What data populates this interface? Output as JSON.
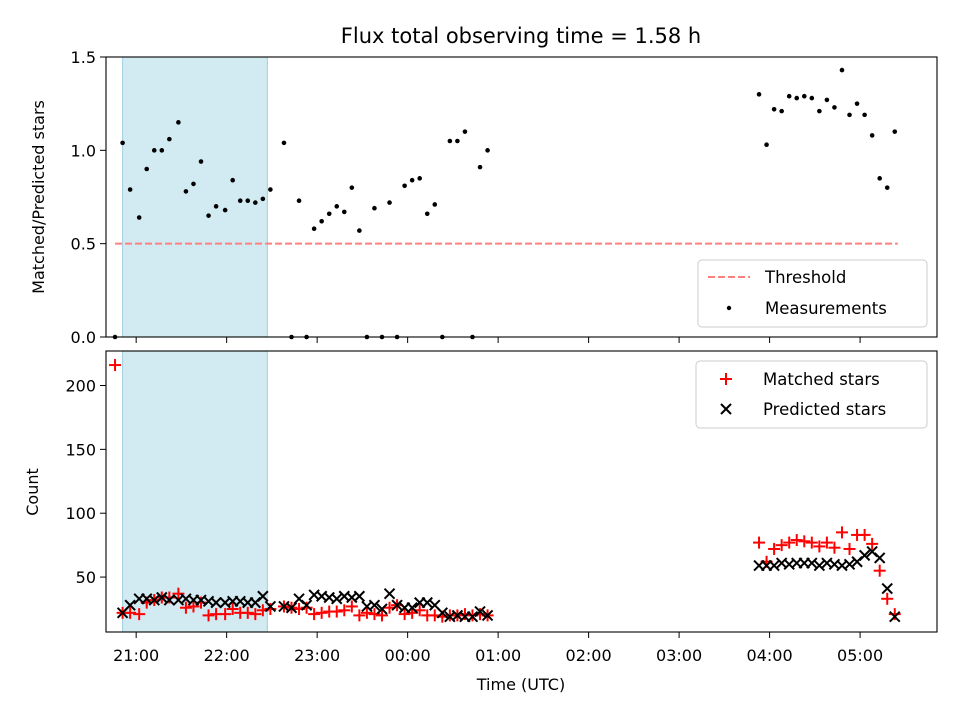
{
  "chart_data": [
    {
      "type": "scatter",
      "title": "Flux total observing time = 1.58 h",
      "ylabel": "Matched/Predicted stars",
      "ylim": [
        0,
        1.5
      ],
      "yticks": [
        "0.0",
        "0.5",
        "1.0",
        "1.5"
      ],
      "xlim": [
        "20:40",
        "05:51"
      ],
      "grid": false,
      "legend_position": "bottom-right",
      "highlight_span": {
        "start": "20:51",
        "end": "22:27",
        "color": "#add8e6"
      },
      "threshold": {
        "name": "Threshold",
        "value": 0.5,
        "x_start": "20:46",
        "x_end": "05:25",
        "color": "#ff7f7f"
      },
      "series": [
        {
          "name": "Measurements",
          "color": "#000000",
          "points": [
            [
              "20:46",
              0.0
            ],
            [
              "20:51",
              1.04
            ],
            [
              "20:56",
              0.79
            ],
            [
              "21:02",
              0.64
            ],
            [
              "21:07",
              0.9
            ],
            [
              "21:12",
              1.0
            ],
            [
              "21:17",
              1.0
            ],
            [
              "21:22",
              1.06
            ],
            [
              "21:28",
              1.15
            ],
            [
              "21:33",
              0.78
            ],
            [
              "21:38",
              0.82
            ],
            [
              "21:43",
              0.94
            ],
            [
              "21:48",
              0.65
            ],
            [
              "21:53",
              0.7
            ],
            [
              "21:59",
              0.68
            ],
            [
              "22:04",
              0.84
            ],
            [
              "22:09",
              0.73
            ],
            [
              "22:14",
              0.73
            ],
            [
              "22:19",
              0.72
            ],
            [
              "22:24",
              0.74
            ],
            [
              "22:29",
              0.79
            ],
            [
              "22:38",
              1.04
            ],
            [
              "22:43",
              0.0
            ],
            [
              "22:48",
              0.73
            ],
            [
              "22:53",
              0.0
            ],
            [
              "22:58",
              0.58
            ],
            [
              "23:03",
              0.62
            ],
            [
              "23:08",
              0.66
            ],
            [
              "23:13",
              0.7
            ],
            [
              "23:18",
              0.67
            ],
            [
              "23:23",
              0.8
            ],
            [
              "23:28",
              0.57
            ],
            [
              "23:33",
              0.0
            ],
            [
              "23:38",
              0.69
            ],
            [
              "23:43",
              0.0
            ],
            [
              "23:48",
              0.72
            ],
            [
              "23:53",
              0.0
            ],
            [
              "23:58",
              0.81
            ],
            [
              "00:03",
              0.84
            ],
            [
              "00:08",
              0.85
            ],
            [
              "00:13",
              0.66
            ],
            [
              "00:18",
              0.71
            ],
            [
              "00:23",
              0.0
            ],
            [
              "00:28",
              1.05
            ],
            [
              "00:33",
              1.05
            ],
            [
              "00:38",
              1.1
            ],
            [
              "00:43",
              0.0
            ],
            [
              "00:48",
              0.91
            ],
            [
              "00:53",
              1.0
            ],
            [
              "03:53",
              1.3
            ],
            [
              "03:58",
              1.03
            ],
            [
              "04:03",
              1.22
            ],
            [
              "04:08",
              1.21
            ],
            [
              "04:13",
              1.29
            ],
            [
              "04:18",
              1.28
            ],
            [
              "04:23",
              1.29
            ],
            [
              "04:28",
              1.28
            ],
            [
              "04:33",
              1.21
            ],
            [
              "04:38",
              1.27
            ],
            [
              "04:43",
              1.23
            ],
            [
              "04:48",
              1.43
            ],
            [
              "04:53",
              1.19
            ],
            [
              "04:58",
              1.25
            ],
            [
              "05:03",
              1.19
            ],
            [
              "05:08",
              1.08
            ],
            [
              "05:13",
              0.85
            ],
            [
              "05:18",
              0.8
            ],
            [
              "05:23",
              1.1
            ]
          ]
        }
      ]
    },
    {
      "type": "scatter",
      "ylabel": "Count",
      "xlabel": "Time (UTC)",
      "ylim": [
        7,
        227
      ],
      "yticks": [
        "50",
        "100",
        "150",
        "200"
      ],
      "xlim": [
        "20:40",
        "05:51"
      ],
      "xticks": [
        "21:00",
        "22:00",
        "23:00",
        "00:00",
        "01:00",
        "02:00",
        "03:00",
        "04:00",
        "05:00"
      ],
      "grid": false,
      "legend_position": "top-right",
      "highlight_span": {
        "start": "20:51",
        "end": "22:27",
        "color": "#add8e6"
      },
      "series": [
        {
          "name": "Matched stars",
          "marker": "plus",
          "color": "#ff0000",
          "points": [
            [
              "20:46",
              216
            ],
            [
              "20:51",
              22
            ],
            [
              "20:56",
              22
            ],
            [
              "21:02",
              21
            ],
            [
              "21:07",
              30
            ],
            [
              "21:12",
              32
            ],
            [
              "21:17",
              34
            ],
            [
              "21:22",
              34
            ],
            [
              "21:28",
              37
            ],
            [
              "21:33",
              26
            ],
            [
              "21:38",
              27
            ],
            [
              "21:43",
              30
            ],
            [
              "21:48",
              20
            ],
            [
              "21:53",
              21
            ],
            [
              "21:59",
              21
            ],
            [
              "22:04",
              25
            ],
            [
              "22:09",
              22
            ],
            [
              "22:14",
              22
            ],
            [
              "22:19",
              21
            ],
            [
              "22:24",
              24
            ],
            [
              "22:29",
              25
            ],
            [
              "22:38",
              27
            ],
            [
              "22:43",
              26
            ],
            [
              "22:48",
              25
            ],
            [
              "22:53",
              26
            ],
            [
              "22:58",
              21
            ],
            [
              "23:03",
              22
            ],
            [
              "23:08",
              23
            ],
            [
              "23:13",
              23
            ],
            [
              "23:18",
              24
            ],
            [
              "23:23",
              27
            ],
            [
              "23:28",
              20
            ],
            [
              "23:33",
              22
            ],
            [
              "23:38",
              21
            ],
            [
              "23:43",
              20
            ],
            [
              "23:48",
              26
            ],
            [
              "23:53",
              28
            ],
            [
              "23:58",
              21
            ],
            [
              "00:03",
              22
            ],
            [
              "00:08",
              24
            ],
            [
              "00:13",
              20
            ],
            [
              "00:18",
              20
            ],
            [
              "00:23",
              19
            ],
            [
              "00:28",
              20
            ],
            [
              "00:33",
              20
            ],
            [
              "00:38",
              21
            ],
            [
              "00:43",
              20
            ],
            [
              "00:48",
              21
            ],
            [
              "00:53",
              20
            ],
            [
              "03:53",
              77
            ],
            [
              "03:58",
              62
            ],
            [
              "04:03",
              72
            ],
            [
              "04:08",
              75
            ],
            [
              "04:13",
              77
            ],
            [
              "04:18",
              79
            ],
            [
              "04:23",
              78
            ],
            [
              "04:28",
              77
            ],
            [
              "04:33",
              74
            ],
            [
              "04:38",
              77
            ],
            [
              "04:43",
              73
            ],
            [
              "04:48",
              85
            ],
            [
              "04:53",
              72
            ],
            [
              "04:58",
              83
            ],
            [
              "05:03",
              83
            ],
            [
              "05:08",
              76
            ],
            [
              "05:13",
              55
            ],
            [
              "05:18",
              33
            ],
            [
              "05:23",
              21
            ]
          ]
        },
        {
          "name": "Predicted stars",
          "marker": "x",
          "color": "#000000",
          "points": [
            [
              "20:51",
              22
            ],
            [
              "20:56",
              28
            ],
            [
              "21:02",
              33
            ],
            [
              "21:07",
              33
            ],
            [
              "21:12",
              32
            ],
            [
              "21:17",
              34
            ],
            [
              "21:22",
              32
            ],
            [
              "21:28",
              32
            ],
            [
              "21:33",
              33
            ],
            [
              "21:38",
              32
            ],
            [
              "21:43",
              32
            ],
            [
              "21:48",
              31
            ],
            [
              "21:53",
              30
            ],
            [
              "21:59",
              30
            ],
            [
              "22:04",
              31
            ],
            [
              "22:09",
              31
            ],
            [
              "22:14",
              30
            ],
            [
              "22:19",
              30
            ],
            [
              "22:24",
              35
            ],
            [
              "22:29",
              27
            ],
            [
              "22:38",
              27
            ],
            [
              "22:43",
              26
            ],
            [
              "22:48",
              33
            ],
            [
              "22:53",
              28
            ],
            [
              "22:58",
              36
            ],
            [
              "23:03",
              35
            ],
            [
              "23:08",
              34
            ],
            [
              "23:13",
              33
            ],
            [
              "23:18",
              35
            ],
            [
              "23:23",
              34
            ],
            [
              "23:28",
              35
            ],
            [
              "23:33",
              27
            ],
            [
              "23:38",
              28
            ],
            [
              "23:43",
              25
            ],
            [
              "23:48",
              37
            ],
            [
              "23:53",
              28
            ],
            [
              "23:58",
              26
            ],
            [
              "00:03",
              26
            ],
            [
              "00:08",
              30
            ],
            [
              "00:13",
              30
            ],
            [
              "00:18",
              28
            ],
            [
              "00:23",
              22
            ],
            [
              "00:28",
              19
            ],
            [
              "00:33",
              20
            ],
            [
              "00:38",
              19
            ],
            [
              "00:43",
              19
            ],
            [
              "00:48",
              23
            ],
            [
              "00:53",
              20
            ],
            [
              "03:53",
              59
            ],
            [
              "03:58",
              59
            ],
            [
              "04:03",
              59
            ],
            [
              "04:08",
              61
            ],
            [
              "04:13",
              60
            ],
            [
              "04:18",
              61
            ],
            [
              "04:23",
              61
            ],
            [
              "04:28",
              61
            ],
            [
              "04:33",
              59
            ],
            [
              "04:38",
              61
            ],
            [
              "04:43",
              60
            ],
            [
              "04:48",
              59
            ],
            [
              "04:53",
              60
            ],
            [
              "04:58",
              62
            ],
            [
              "05:03",
              67
            ],
            [
              "05:08",
              70
            ],
            [
              "05:13",
              65
            ],
            [
              "05:18",
              41
            ],
            [
              "05:23",
              19
            ]
          ]
        }
      ]
    }
  ]
}
